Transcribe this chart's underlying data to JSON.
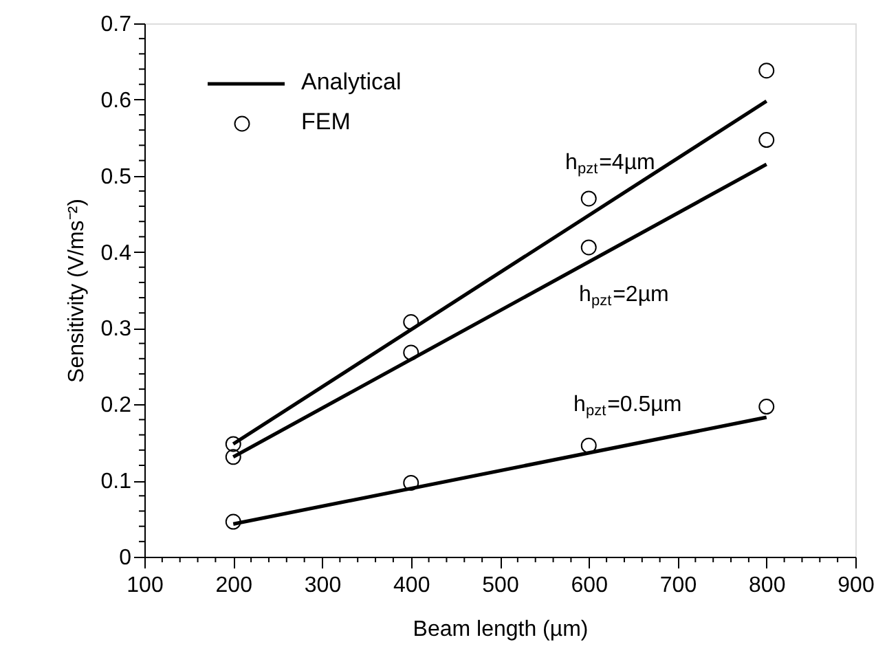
{
  "chart_data": {
    "type": "line",
    "xlabel": "Beam length (µm)",
    "ylabel": "Sensitivity (V/ms⁻²)",
    "xlim": [
      100,
      900
    ],
    "ylim": [
      0,
      0.7
    ],
    "xticks": [
      100,
      {
        "value": 120,
        "label": null
      },
      {
        "value": 140,
        "label": null
      },
      {
        "value": 160,
        "label": null
      },
      {
        "value": 180,
        "label": null
      },
      200,
      {
        "value": 220,
        "label": null
      },
      {
        "value": 240,
        "label": null
      },
      {
        "value": 260,
        "label": null
      },
      {
        "value": 280,
        "label": null
      },
      300,
      {
        "value": 320,
        "label": null
      },
      {
        "value": 340,
        "label": null
      },
      {
        "value": 360,
        "label": null
      },
      {
        "value": 380,
        "label": null
      },
      400,
      {
        "value": 420,
        "label": null
      },
      {
        "value": 440,
        "label": null
      },
      {
        "value": 460,
        "label": null
      },
      {
        "value": 480,
        "label": null
      },
      500,
      {
        "value": 520,
        "label": null
      },
      {
        "value": 540,
        "label": null
      },
      {
        "value": 560,
        "label": null
      },
      {
        "value": 580,
        "label": null
      },
      600,
      {
        "value": 620,
        "label": null
      },
      {
        "value": 640,
        "label": null
      },
      {
        "value": 660,
        "label": null
      },
      {
        "value": 680,
        "label": null
      },
      700,
      {
        "value": 720,
        "label": null
      },
      {
        "value": 740,
        "label": null
      },
      {
        "value": 760,
        "label": null
      },
      {
        "value": 780,
        "label": null
      },
      800,
      {
        "value": 820,
        "label": null
      },
      {
        "value": 840,
        "label": null
      },
      {
        "value": 860,
        "label": null
      },
      {
        "value": 880,
        "label": null
      },
      900
    ],
    "yticks": [
      0,
      {
        "value": 0.02,
        "label": null
      },
      {
        "value": 0.04,
        "label": null
      },
      {
        "value": 0.06,
        "label": null
      },
      {
        "value": 0.08,
        "label": null
      },
      0.1,
      {
        "value": 0.12,
        "label": null
      },
      {
        "value": 0.14,
        "label": null
      },
      {
        "value": 0.16,
        "label": null
      },
      {
        "value": 0.18,
        "label": null
      },
      0.2,
      {
        "value": 0.22,
        "label": null
      },
      {
        "value": 0.24,
        "label": null
      },
      {
        "value": 0.26,
        "label": null
      },
      {
        "value": 0.28,
        "label": null
      },
      0.3,
      {
        "value": 0.32,
        "label": null
      },
      {
        "value": 0.34,
        "label": null
      },
      {
        "value": 0.36,
        "label": null
      },
      {
        "value": 0.38,
        "label": null
      },
      0.4,
      {
        "value": 0.42,
        "label": null
      },
      {
        "value": 0.44,
        "label": null
      },
      {
        "value": 0.46,
        "label": null
      },
      {
        "value": 0.48,
        "label": null
      },
      0.5,
      {
        "value": 0.52,
        "label": null
      },
      {
        "value": 0.54,
        "label": null
      },
      {
        "value": 0.56,
        "label": null
      },
      {
        "value": 0.58,
        "label": null
      },
      0.6,
      {
        "value": 0.62,
        "label": null
      },
      {
        "value": 0.64,
        "label": null
      },
      {
        "value": 0.66,
        "label": null
      },
      {
        "value": 0.68,
        "label": null
      },
      0.7
    ],
    "grid": false,
    "legend": "top left",
    "line_style": "solid",
    "series": [
      {
        "name": "Analytical",
        "color": "#000000",
        "x": [
          200,
          800
        ],
        "values": [
          0.148,
          0.598
        ]
      },
      {
        "color": "#000000",
        "x": [
          200,
          800
        ],
        "values": [
          0.131,
          0.515
        ]
      },
      {
        "color": "#000000",
        "x": [
          200,
          800
        ],
        "values": [
          0.043,
          0.183
        ]
      },
      {
        "name": "FEM",
        "type": "scatter",
        "marker": "circle",
        "color": "#000000",
        "x": [
          200,
          400,
          600,
          800
        ],
        "values": [
          0.148,
          0.308,
          0.47,
          0.638
        ]
      },
      {
        "type": "scatter",
        "marker": "circle",
        "color": "#000000",
        "x": [
          200,
          400,
          600,
          800
        ],
        "values": [
          0.131,
          0.268,
          0.406,
          0.547
        ]
      },
      {
        "type": "scatter",
        "marker": "circle",
        "color": "#000000",
        "x": [
          200,
          400,
          600,
          800
        ],
        "values": [
          0.046,
          0.097,
          0.146,
          0.197
        ]
      }
    ],
    "annotations": [
      "h$_{pzt}$=4µm",
      "h$_{pzt}$=2µm",
      "h$_{pzt}$=0.5µm"
    ]
  }
}
